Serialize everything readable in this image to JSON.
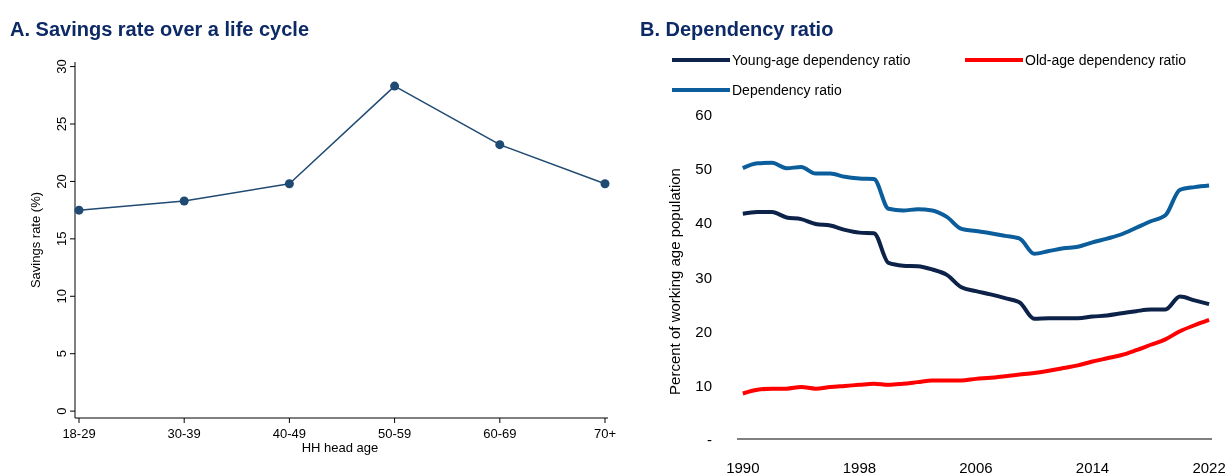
{
  "chart_data": [
    {
      "type": "line",
      "title": "A. Savings rate over a life cycle",
      "xlabel": "HH head age",
      "ylabel": "Savings rate (%)",
      "categories": [
        "18-29",
        "30-39",
        "40-49",
        "50-59",
        "60-69",
        "70+"
      ],
      "series": [
        {
          "color": "#1f4a73",
          "values": [
            17.5,
            18.3,
            19.8,
            28.3,
            23.2,
            19.8
          ]
        }
      ],
      "ylim": [
        -0.6,
        30.4
      ],
      "yticks": [
        0,
        5,
        10,
        15,
        20,
        25,
        30
      ],
      "marker": "circle"
    },
    {
      "type": "line",
      "title": "B. Dependency ratio",
      "ylabel": "Percent of working age population",
      "x": [
        1990,
        1991,
        1992,
        1993,
        1994,
        1995,
        1996,
        1997,
        1998,
        1999,
        2000,
        2001,
        2002,
        2003,
        2004,
        2005,
        2006,
        2007,
        2008,
        2009,
        2010,
        2011,
        2012,
        2013,
        2014,
        2015,
        2016,
        2017,
        2018,
        2019,
        2020,
        2021,
        2022
      ],
      "series": [
        {
          "name": "Young-age dependency ratio",
          "color": "#0c2249",
          "values": [
            41.6,
            41.9,
            41.9,
            40.9,
            40.6,
            39.7,
            39.4,
            38.6,
            38.1,
            38.0,
            32.5,
            32.0,
            31.9,
            31.3,
            30.3,
            28.0,
            27.3,
            26.7,
            26.0,
            25.2,
            22.2,
            22.3,
            22.3,
            22.3,
            22.6,
            22.8,
            23.2,
            23.6,
            23.9,
            23.9,
            26.3,
            25.6,
            24.9
          ]
        },
        {
          "name": "Old-age dependency ratio",
          "color": "#ff0000",
          "values": [
            8.4,
            9.1,
            9.3,
            9.3,
            9.6,
            9.3,
            9.6,
            9.8,
            10.0,
            10.2,
            10.0,
            10.2,
            10.5,
            10.8,
            10.8,
            10.8,
            11.1,
            11.3,
            11.6,
            11.9,
            12.2,
            12.6,
            13.1,
            13.6,
            14.3,
            14.9,
            15.5,
            16.4,
            17.4,
            18.4,
            19.9,
            21.0,
            22.0
          ]
        },
        {
          "name": "Dependency ratio",
          "color": "#0b5e9b",
          "values": [
            50.0,
            50.9,
            51.0,
            50.0,
            50.2,
            49.0,
            49.0,
            48.4,
            48.1,
            48.0,
            42.5,
            42.2,
            42.4,
            42.2,
            41.0,
            38.8,
            38.4,
            38.0,
            37.5,
            37.0,
            34.2,
            34.7,
            35.2,
            35.5,
            36.3,
            37.0,
            37.8,
            39.0,
            40.2,
            41.3,
            46.0,
            46.5,
            46.8
          ]
        }
      ],
      "xlim": [
        1989.6,
        2022.2
      ],
      "xticks": [
        1990,
        1998,
        2006,
        2014,
        2022
      ],
      "ylim": [
        0,
        60
      ],
      "yticks": [
        {
          "value": 0,
          "label": "-"
        },
        10,
        20,
        30,
        40,
        50,
        60
      ],
      "legend": "top"
    }
  ]
}
